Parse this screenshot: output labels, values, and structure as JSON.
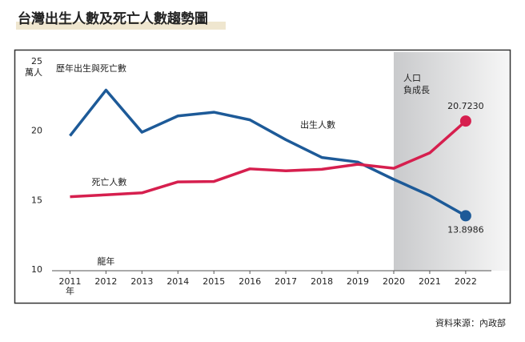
{
  "chart_data": {
    "type": "line",
    "title": "台灣出生人數及死亡人數趨勢圖",
    "subtitle": "歷年出生與死亡數",
    "y_label": "萬人",
    "x_label": "年",
    "source": "資料來源：內政部",
    "x": [
      2011,
      2012,
      2013,
      2014,
      2015,
      2016,
      2017,
      2018,
      2019,
      2020,
      2021,
      2022
    ],
    "xlim": [
      2010.5,
      2022.67
    ],
    "xticks": [
      2011,
      2012,
      2013,
      2014,
      2015,
      2016,
      2017,
      2018,
      2019,
      2020,
      2021,
      2022
    ],
    "ylim": [
      10,
      25
    ],
    "yticks": [
      10,
      15,
      20,
      25
    ],
    "grid": false,
    "series": [
      {
        "name": "出生人數",
        "color": "#1d5a98",
        "values": [
          19.66,
          22.95,
          19.92,
          21.09,
          21.36,
          20.81,
          19.38,
          18.1,
          17.77,
          16.52,
          15.36,
          13.8986
        ],
        "value_labels": [
          null,
          null,
          null,
          null,
          null,
          null,
          null,
          null,
          null,
          null,
          null,
          "13.8986"
        ]
      },
      {
        "name": "死亡人數",
        "color": "#d61f4e",
        "values": [
          15.27,
          15.41,
          15.55,
          16.34,
          16.37,
          17.28,
          17.14,
          17.25,
          17.61,
          17.32,
          18.43,
          20.723
        ],
        "value_labels": [
          null,
          null,
          null,
          null,
          null,
          null,
          null,
          null,
          null,
          null,
          null,
          "20.7230"
        ]
      }
    ],
    "shade": {
      "from": 2020,
      "lines": [
        "人口",
        "負成長"
      ]
    },
    "annotation": {
      "text": "龍年",
      "x": 2012
    }
  }
}
